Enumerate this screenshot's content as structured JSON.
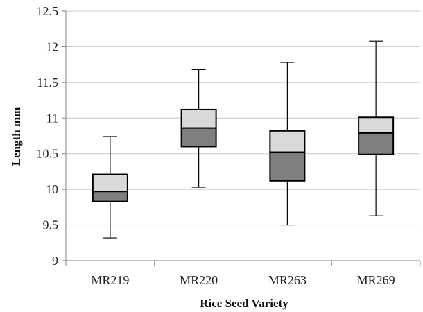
{
  "chart_data": {
    "type": "box",
    "xlabel": "Rice Seed Variety",
    "ylabel": "Length  mm",
    "ylim": [
      9,
      12.5
    ],
    "yticks": [
      "9",
      "9.5",
      "10",
      "10.5",
      "11",
      "11.5",
      "12",
      "12.5"
    ],
    "grid": true,
    "colors": {
      "upper_box": "#d9d9d9",
      "lower_box": "#7f7f7f",
      "grid": "#c8c8c8",
      "axis": "#808080",
      "outline": "#000000"
    },
    "categories": [
      "MR219",
      "MR220",
      "MR263",
      "MR269"
    ],
    "boxes": [
      {
        "category": "MR219",
        "min": 9.32,
        "q1": 9.83,
        "median": 9.97,
        "q3": 10.21,
        "max": 10.74
      },
      {
        "category": "MR220",
        "min": 10.03,
        "q1": 10.6,
        "median": 10.86,
        "q3": 11.12,
        "max": 11.68
      },
      {
        "category": "MR263",
        "min": 9.5,
        "q1": 10.12,
        "median": 10.52,
        "q3": 10.82,
        "max": 11.78
      },
      {
        "category": "MR269",
        "min": 9.63,
        "q1": 10.49,
        "median": 10.79,
        "q3": 11.01,
        "max": 12.08
      }
    ]
  }
}
